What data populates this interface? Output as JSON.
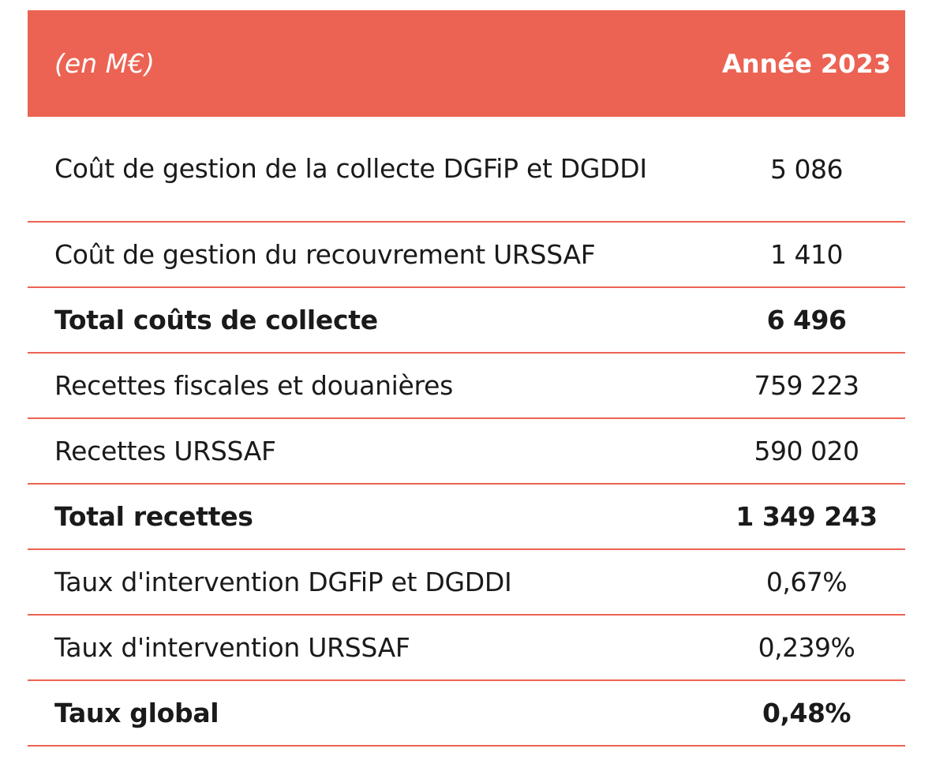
{
  "header": {
    "unit_label": "(en M€)",
    "year_label": "Année 2023"
  },
  "rows": [
    {
      "label": "Coût de gestion de la collecte DGFiP et DGDDI",
      "value": "5 086"
    },
    {
      "label": "Coût de gestion du recouvrement URSSAF",
      "value": "1 410"
    },
    {
      "label": "Total coûts de collecte",
      "value": "6 496"
    },
    {
      "label": "Recettes fiscales et douanières",
      "value": "759 223"
    },
    {
      "label": "Recettes URSSAF",
      "value": "590 020"
    },
    {
      "label": "Total recettes",
      "value": "1 349 243"
    },
    {
      "label": "Taux d'intervention DGFiP et DGDDI",
      "value": "0,67%"
    },
    {
      "label": "Taux d'intervention URSSAF",
      "value": "0,239%"
    },
    {
      "label": "Taux global",
      "value": "0,48%"
    }
  ],
  "colors": {
    "accent": "#ec6353",
    "header_text": "#ffffff",
    "body_text": "#1a1a1a"
  }
}
